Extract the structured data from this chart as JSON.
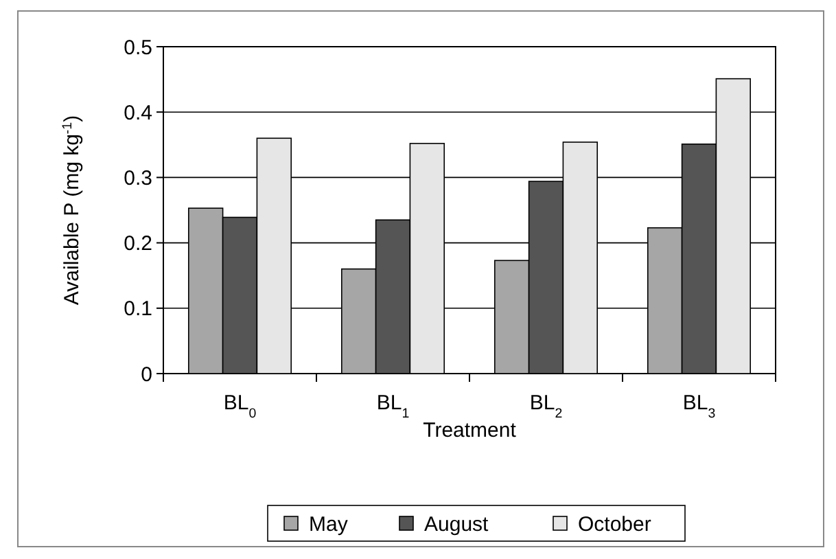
{
  "chart_data": {
    "type": "bar",
    "xlabel": "Treatment",
    "ylabel": "Available P (mg kg$^{-1}$)",
    "categories": [
      "BL$_{0}$",
      "BL$_{1}$",
      "BL$_{2}$",
      "BL$_{3}$"
    ],
    "series": [
      {
        "name": "May",
        "color": "#a6a6a6",
        "values": [
          0.253,
          0.16,
          0.173,
          0.223
        ]
      },
      {
        "name": "August",
        "color": "#555555",
        "values": [
          0.239,
          0.235,
          0.294,
          0.351
        ]
      },
      {
        "name": "October",
        "color": "#e6e6e6",
        "values": [
          0.36,
          0.352,
          0.354,
          0.451
        ]
      }
    ],
    "ylim": [
      0,
      0.5
    ],
    "yticks": [
      0,
      0.1,
      0.2,
      0.3,
      0.4,
      0.5
    ],
    "grid": "y",
    "legend": "bottom"
  }
}
